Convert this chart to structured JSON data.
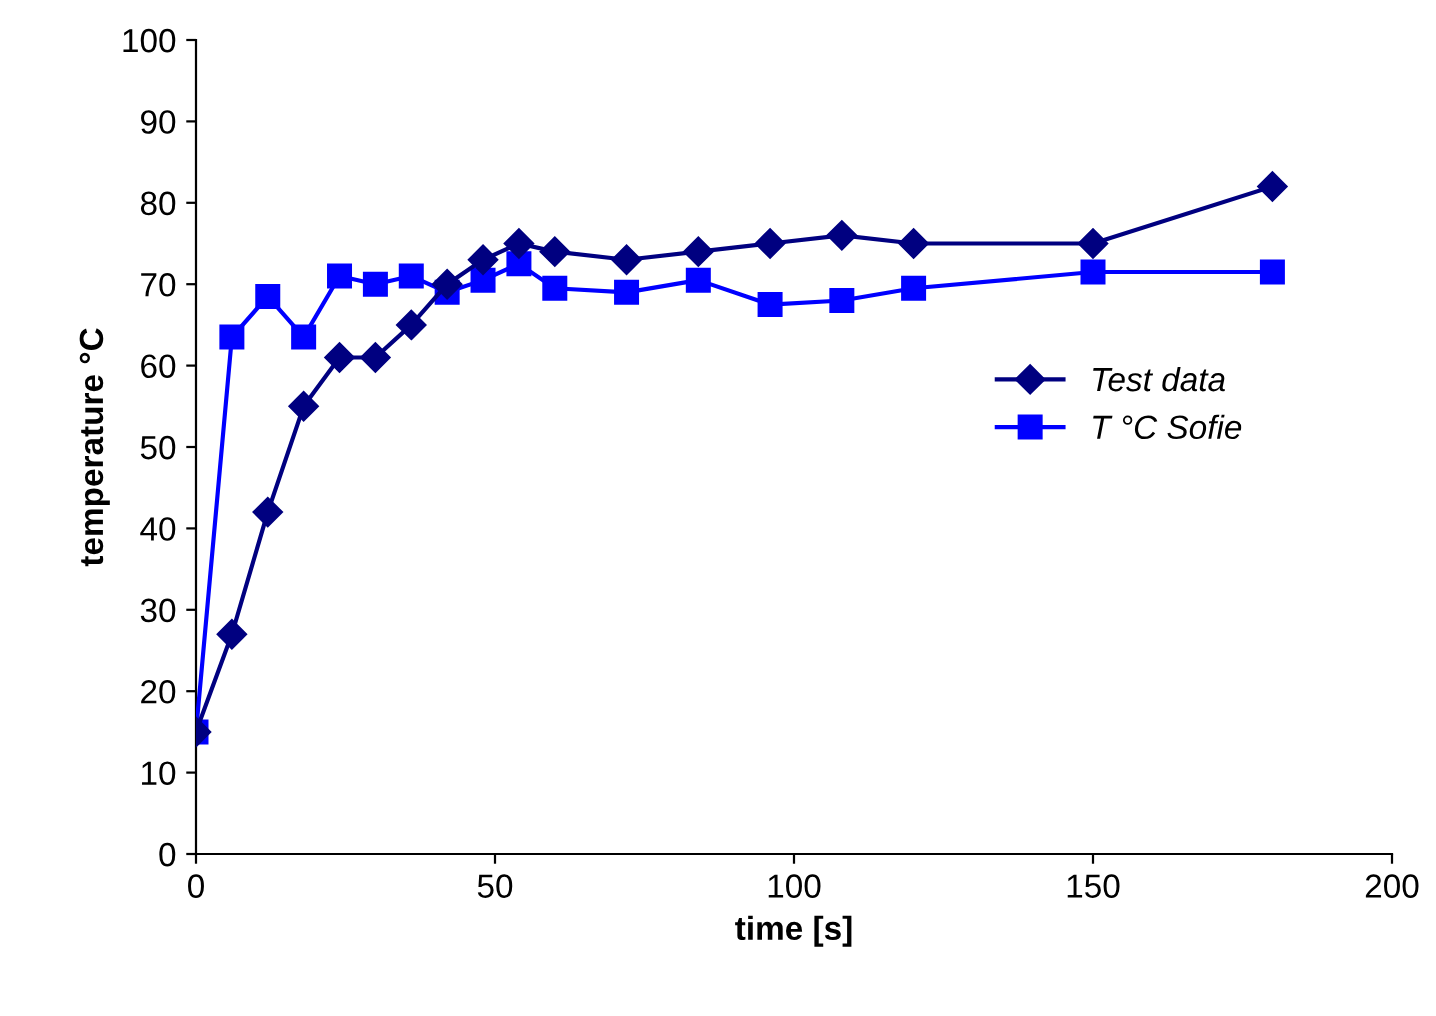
{
  "chart_data": {
    "type": "line",
    "xlabel": "time [s]",
    "ylabel": "temperature °C",
    "xlim": [
      0,
      200
    ],
    "xticks": [
      0,
      50,
      100,
      150,
      200
    ],
    "ylim": [
      0,
      100
    ],
    "yticks": [
      0,
      10,
      20,
      30,
      40,
      50,
      60,
      70,
      80,
      90,
      100
    ],
    "grid": false,
    "legend": "right",
    "line_style": "solid",
    "series": [
      {
        "name": "Test data",
        "color": "#000080",
        "marker": "diamond",
        "x": [
          0,
          6,
          12,
          18,
          24,
          30,
          36,
          42,
          48,
          54,
          60,
          72,
          84,
          96,
          108,
          120,
          150,
          180
        ],
        "values": [
          15,
          27,
          42,
          55,
          61,
          61,
          65,
          70,
          73,
          75,
          74,
          73,
          74,
          75,
          76,
          75,
          75,
          82
        ]
      },
      {
        "name": "T °C Sofie",
        "color": "#0000ff",
        "marker": "square",
        "x": [
          0,
          6,
          12,
          18,
          24,
          30,
          36,
          42,
          48,
          54,
          60,
          72,
          84,
          96,
          108,
          120,
          150,
          180
        ],
        "values": [
          15,
          63.5,
          68.5,
          63.5,
          71,
          70,
          71,
          69,
          70.5,
          72.5,
          69.5,
          69,
          70.5,
          67.5,
          68,
          69.5,
          71.5,
          71.5
        ]
      }
    ]
  }
}
